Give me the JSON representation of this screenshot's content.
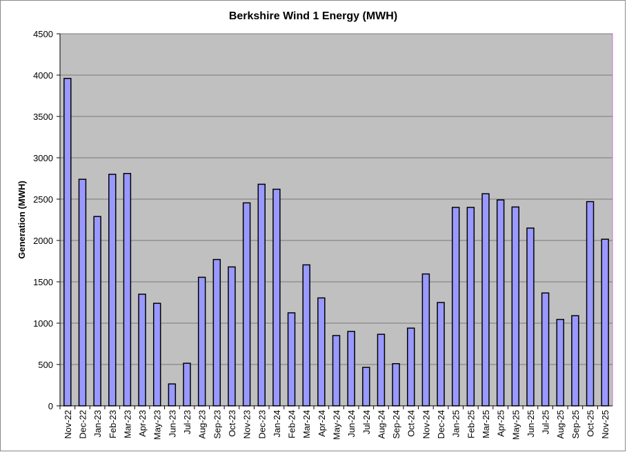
{
  "chart_data": {
    "type": "bar",
    "title": "Berkshire Wind 1 Energy (MWH)",
    "y_label": "Generation (MWH)",
    "categories": [
      "Nov-22",
      "Dec-22",
      "Jan-23",
      "Feb-23",
      "Mar-23",
      "Apr-23",
      "May-23",
      "Jun-23",
      "Jul-23",
      "Aug-23",
      "Sep-23",
      "Oct-23",
      "Nov-23",
      "Dec-23",
      "Jan-24",
      "Feb-24",
      "Mar-24",
      "Apr-24",
      "May-24",
      "Jun-24",
      "Jul-24",
      "Aug-24",
      "Sep-24",
      "Oct-24",
      "Nov-24",
      "Dec-24",
      "Jan-25",
      "Feb-25",
      "Mar-25",
      "Apr-25",
      "May-25",
      "Jun-25",
      "Jul-25",
      "Aug-25",
      "Sep-25",
      "Oct-25",
      "Nov-25"
    ],
    "values": [
      3960,
      2740,
      2290,
      2800,
      2810,
      1350,
      1240,
      265,
      515,
      1555,
      1770,
      1680,
      2455,
      2680,
      2620,
      1125,
      1705,
      1305,
      850,
      900,
      465,
      865,
      510,
      940,
      1595,
      1250,
      2400,
      2400,
      2565,
      2490,
      2405,
      2150,
      1365,
      1045,
      1090,
      2470,
      2015
    ],
    "color": "#9999ff",
    "ylim": [
      0,
      4500
    ],
    "yticks": [
      0,
      500,
      1000,
      1500,
      2000,
      2500,
      3000,
      3500,
      4000,
      4500
    ],
    "grid": true
  }
}
